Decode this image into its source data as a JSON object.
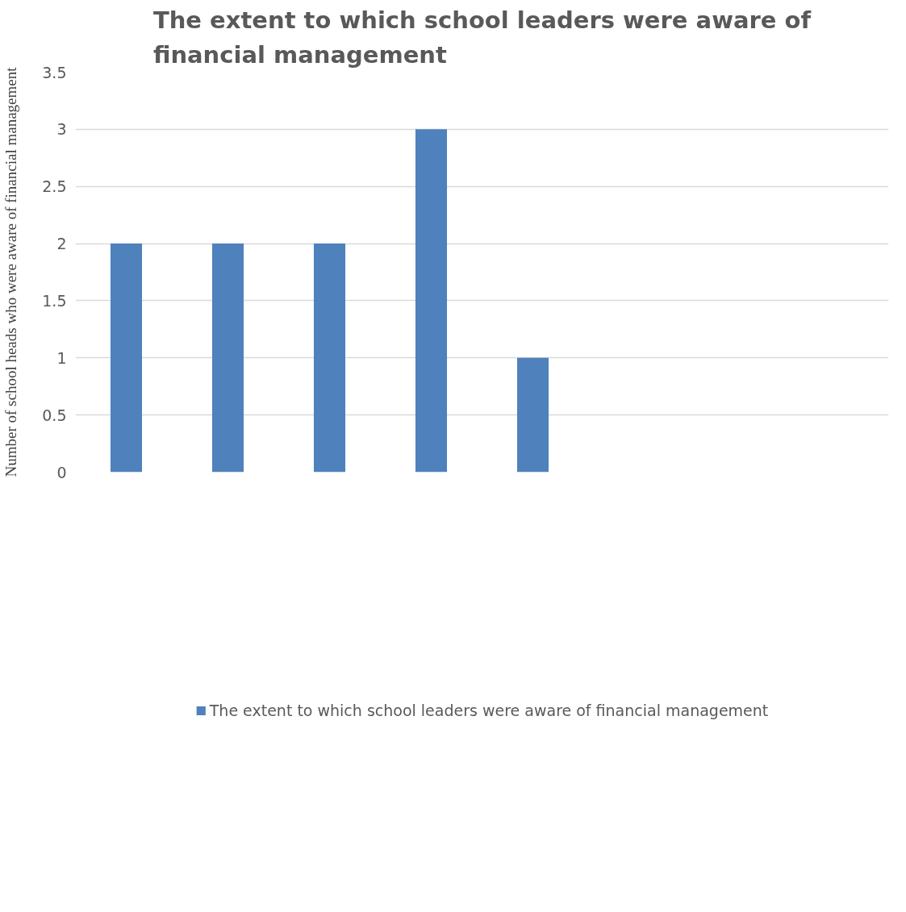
{
  "chart_data": {
    "type": "bar",
    "title": "The extent to which school leaders were aware of financial management",
    "ylabel": "Number of school heads who were aware of financial management",
    "categories": [
      null,
      null,
      null,
      null,
      null,
      null,
      null,
      null
    ],
    "series": [
      {
        "name": "The extent to which school leaders were aware of financial management",
        "color": "#4f81bd",
        "values": [
          2,
          2,
          2,
          3,
          1,
          null,
          null,
          null
        ]
      }
    ],
    "ylim": [
      0,
      3.5
    ],
    "yticks": [
      0,
      0.5,
      1,
      1.5,
      2,
      2.5,
      3,
      3.5
    ],
    "grid": "y",
    "legend": "bottom",
    "tick_labels": "y"
  }
}
